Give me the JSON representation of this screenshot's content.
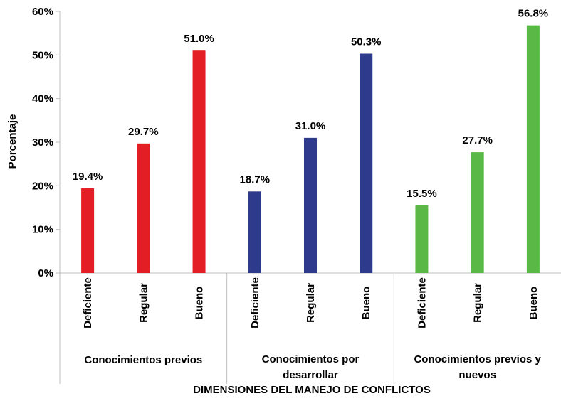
{
  "chart_data": {
    "type": "bar",
    "ylabel": "Porcentaje",
    "xlabel": "DIMENSIONES DEL MANEJO DE CONFLICTOS",
    "ylim": [
      0,
      60
    ],
    "y_ticks": [
      "0%",
      "10%",
      "20%",
      "30%",
      "40%",
      "50%",
      "60%"
    ],
    "grid": false,
    "groups": [
      {
        "label_lines": [
          "Conocimientos previos"
        ],
        "color": "#e31e24",
        "categories": [
          "Deficiente",
          "Regular",
          "Bueno"
        ],
        "values": [
          19.4,
          29.7,
          51.0
        ],
        "value_labels": [
          "19.4%",
          "29.7%",
          "51.0%"
        ]
      },
      {
        "label_lines": [
          "Conocimientos por",
          "desarrollar"
        ],
        "color": "#2e3a8c",
        "categories": [
          "Deficiente",
          "Regular",
          "Bueno"
        ],
        "values": [
          18.7,
          31.0,
          50.3
        ],
        "value_labels": [
          "18.7%",
          "31.0%",
          "50.3%"
        ]
      },
      {
        "label_lines": [
          "Conocimientos previos y",
          "nuevos"
        ],
        "color": "#5ab946",
        "categories": [
          "Deficiente",
          "Regular",
          "Bueno"
        ],
        "values": [
          15.5,
          27.7,
          56.8
        ],
        "value_labels": [
          "15.5%",
          "27.7%",
          "56.8%"
        ]
      }
    ]
  }
}
